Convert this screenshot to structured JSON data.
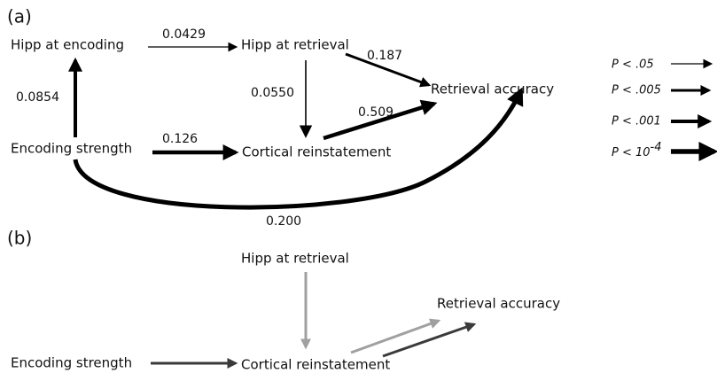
{
  "panel_a": {
    "label": "(a)",
    "nodes": [
      "Hipp at encoding",
      "Hipp at retrieval",
      "Retrieval accuracy",
      "Encoding strength",
      "Cortical reinstatement"
    ],
    "edges": [
      "0.0429",
      "0.187",
      "0.0550",
      "0.509",
      "0.0854",
      "0.126",
      "0.200"
    ]
  },
  "legend": [
    {
      "text": "P < .05"
    },
    {
      "text": "P < .005"
    },
    {
      "text": "P < .001"
    },
    {
      "text": "P < 10",
      "exponent": "-4"
    }
  ],
  "panel_b": {
    "label": "(b)",
    "nodes": [
      "Hipp at retrieval",
      "Retrieval accuracy",
      "Encoding strength",
      "Cortical reinstatement"
    ]
  }
}
